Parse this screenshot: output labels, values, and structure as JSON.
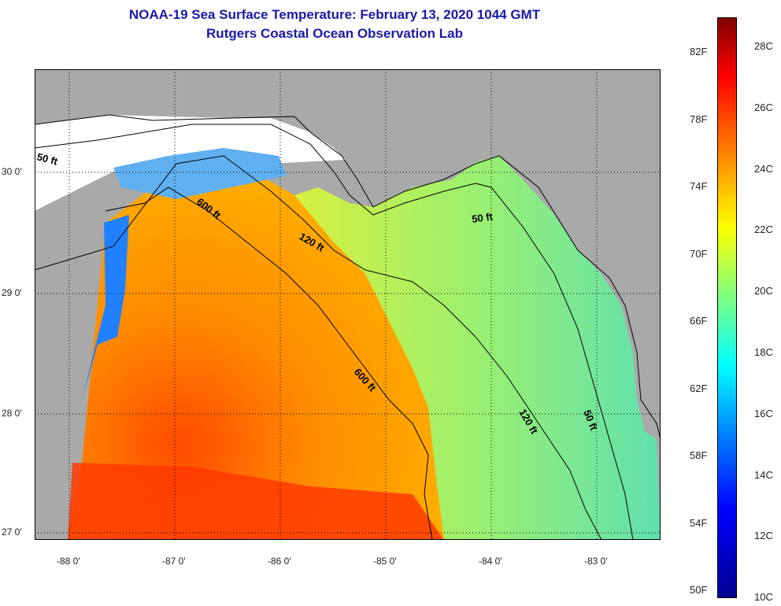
{
  "title": {
    "line1": "NOAA-19 Sea Surface Temperature:  February 13, 2020 1044 GMT",
    "line2": "Rutgers Coastal Ocean Observation Lab"
  },
  "axes": {
    "lon_labels": [
      "-88 0'",
      "-87 0'",
      "-86 0'",
      "-85 0'",
      "-84 0'",
      "-83 0'"
    ],
    "lat_labels": [
      "30 0'",
      "29 0'",
      "28 0'",
      "27 0'"
    ],
    "lon_range": [
      -88.3,
      -82.45
    ],
    "lat_range": [
      26.98,
      30.85
    ]
  },
  "contours": [
    "50 ft",
    "600 ft",
    "120 ft",
    "50 ft",
    "600 ft",
    "120 ft",
    "50 ft"
  ],
  "colorbar": {
    "fahrenheit": [
      "82F",
      "78F",
      "74F",
      "70F",
      "66F",
      "62F",
      "58F",
      "54F",
      "50F"
    ],
    "celsius": [
      "28C",
      "26C",
      "24C",
      "22C",
      "20C",
      "18C",
      "16C",
      "14C",
      "12C",
      "10C"
    ],
    "colors": [
      "#00008f",
      "#0000ff",
      "#0080ff",
      "#00ffff",
      "#80ff80",
      "#ffff00",
      "#ff8000",
      "#ff0000",
      "#800000"
    ]
  },
  "colors": {
    "land": "#a9a9a9",
    "no_data": "#ffffff",
    "title": "#1a1aa8"
  }
}
